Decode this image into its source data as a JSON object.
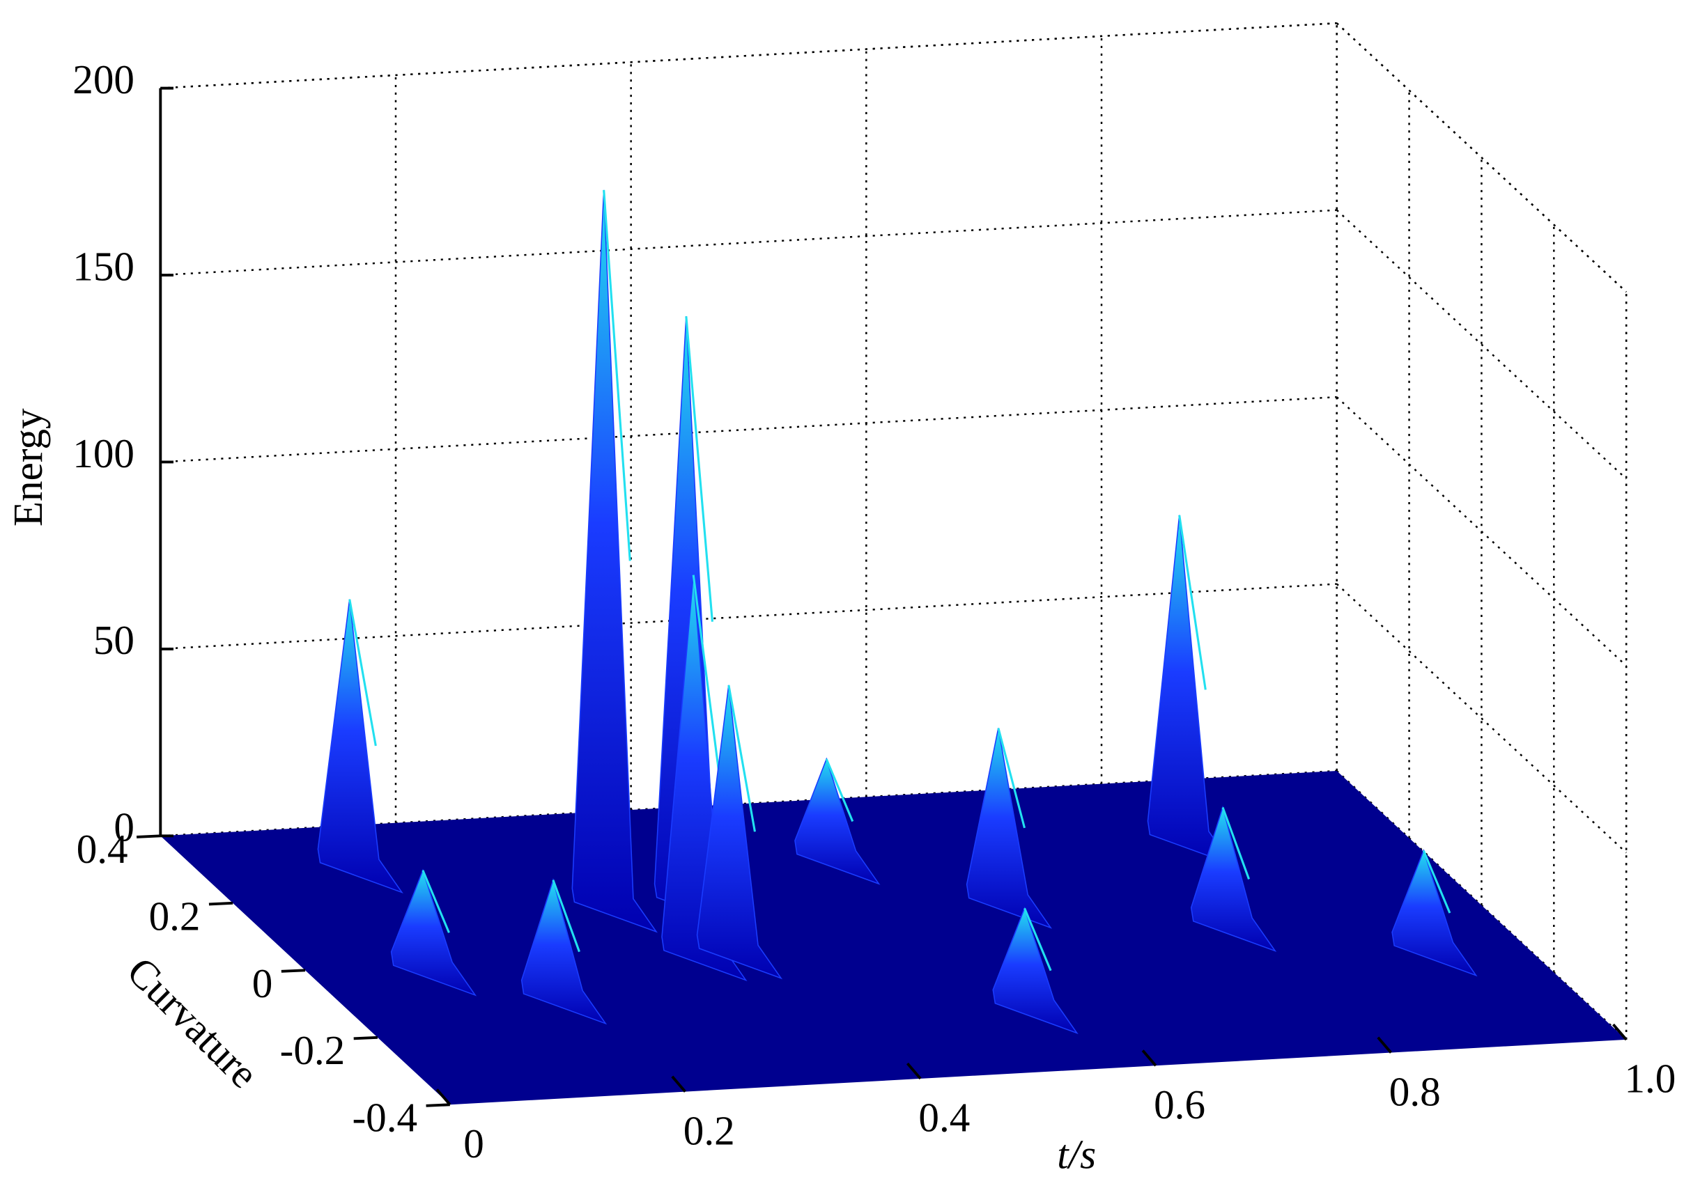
{
  "chart_data": {
    "type": "surface3d",
    "xlabel": "t/s",
    "ylabel": "Curvature",
    "zlabel": "Energy",
    "xlim": [
      0,
      1
    ],
    "xticks": [
      0,
      0.2,
      0.4,
      0.6,
      0.8,
      {
        "value": 1,
        "label": "1.0"
      }
    ],
    "ylim": [
      -0.4,
      0.4
    ],
    "yticks": [
      -0.4,
      -0.2,
      0,
      0.2,
      0.4
    ],
    "zlim": [
      0,
      200
    ],
    "zticks": [
      0,
      50,
      100,
      150,
      200
    ],
    "grid": true,
    "floor_color": "#00008f",
    "color": "#1a3cff",
    "peak_color": "#22e0f0",
    "x": [
      0.13,
      0.52,
      0.82,
      0.3,
      0.37,
      0.62,
      0.33,
      0.36,
      0.1,
      0.78,
      0.18,
      0.92,
      0.55
    ],
    "y": [
      0.3,
      0.25,
      0.25,
      0.15,
      0.15,
      0.1,
      0.0,
      0.0,
      0.0,
      0.0,
      -0.1,
      -0.1,
      -0.2
    ],
    "z": [
      70,
      25,
      85,
      190,
      155,
      45,
      100,
      70,
      25,
      30,
      30,
      25,
      25
    ]
  }
}
